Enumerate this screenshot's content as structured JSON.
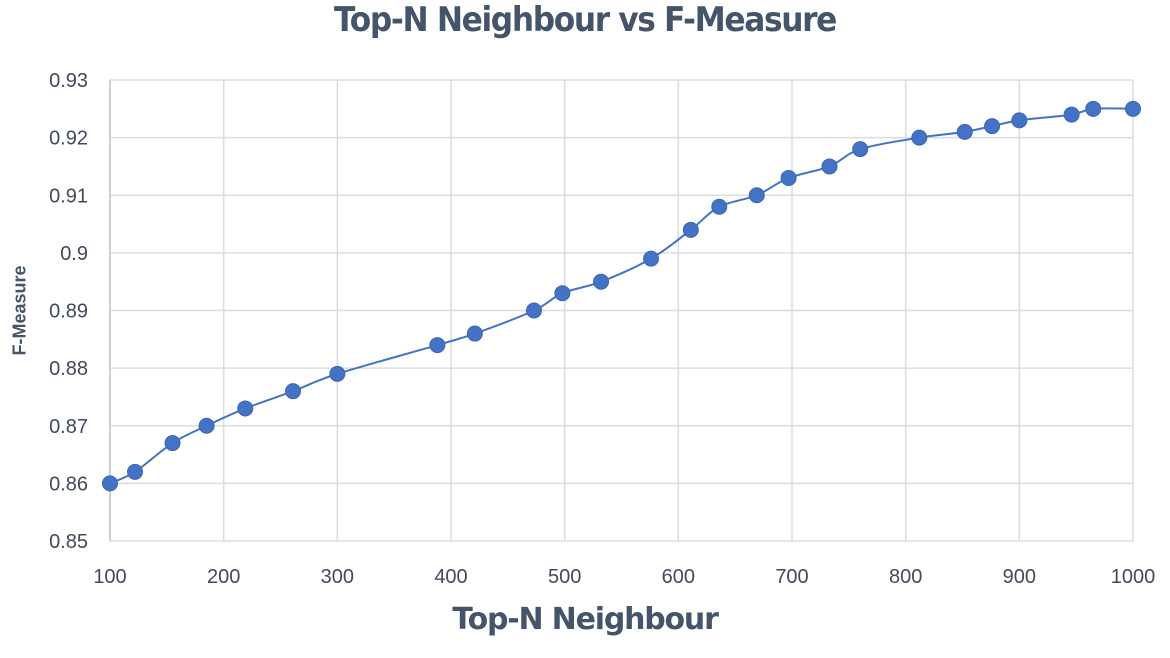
{
  "chart_data": {
    "type": "line",
    "title": "Top-N Neighbour vs F-Measure",
    "xlabel": "Top-N Neighbour",
    "ylabel": "F-Measure",
    "xlim": [
      100,
      1000
    ],
    "ylim": [
      0.85,
      0.93
    ],
    "x_ticks": [
      "100",
      "200",
      "300",
      "400",
      "500",
      "600",
      "700",
      "800",
      "900",
      "1000"
    ],
    "y_ticks": [
      "0.85",
      "0.86",
      "0.87",
      "0.88",
      "0.89",
      "0.9",
      "0.91",
      "0.92",
      "0.93"
    ],
    "grid": true,
    "legend": null,
    "series": [
      {
        "name": "F-Measure",
        "color": "#4472c4",
        "marker": "circle",
        "x": [
          100,
          122,
          155,
          185,
          219,
          261,
          300,
          388,
          421,
          473,
          498,
          532,
          576,
          611,
          636,
          669,
          697,
          733,
          760,
          812,
          852,
          876,
          900,
          946,
          965,
          1000
        ],
        "values": [
          0.86,
          0.862,
          0.867,
          0.87,
          0.873,
          0.876,
          0.879,
          0.884,
          0.886,
          0.89,
          0.893,
          0.895,
          0.899,
          0.904,
          0.908,
          0.91,
          0.913,
          0.915,
          0.918,
          0.92,
          0.921,
          0.922,
          0.923,
          0.924,
          0.925,
          0.925
        ]
      }
    ]
  },
  "colors": {
    "text": "#44546a",
    "grid": "#d9dde3",
    "line": "#4472c4"
  }
}
